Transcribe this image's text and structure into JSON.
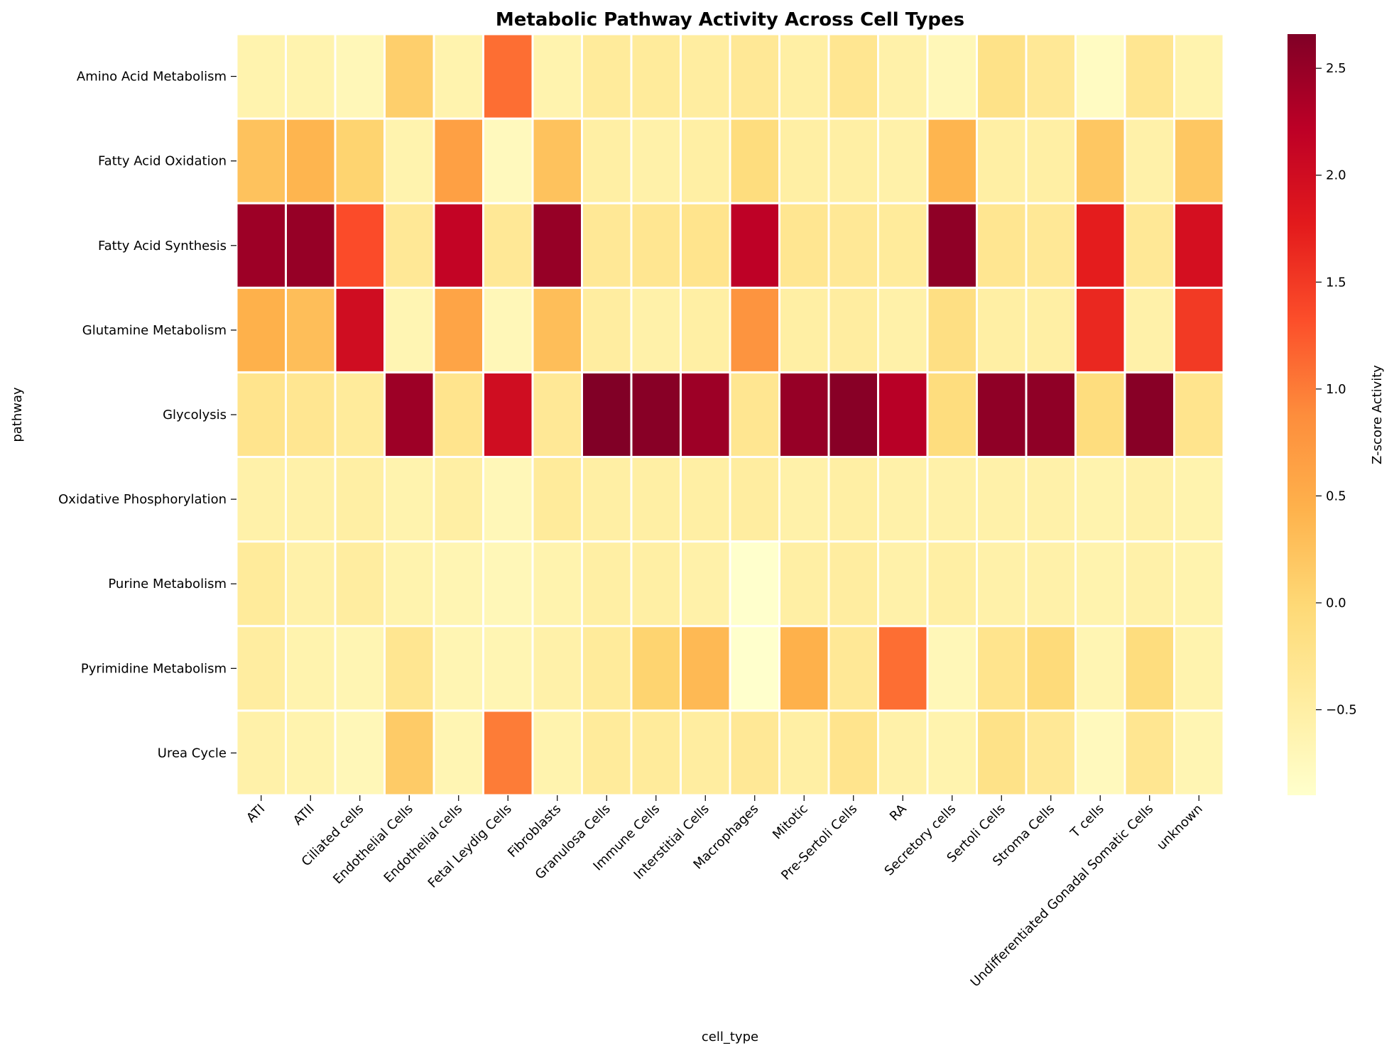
{
  "chart_data": {
    "type": "heatmap",
    "title": "Metabolic Pathway Activity Across Cell Types",
    "xlabel": "cell_type",
    "ylabel": "pathway",
    "colorbar_label": "Z-score Activity",
    "colormap": "YlOrRd",
    "colorbar_range": [
      -0.9,
      2.66
    ],
    "colorbar_ticks": [
      "−0.5",
      "0.0",
      "0.5",
      "1.0",
      "1.5",
      "2.0",
      "2.5"
    ],
    "colorbar_tick_values": [
      -0.5,
      0.0,
      0.5,
      1.0,
      1.5,
      2.0,
      2.5
    ],
    "colorbar_stops": [
      "#ffffcc",
      "#ffeda0",
      "#fed976",
      "#feb24c",
      "#fd8d3c",
      "#fc4e2a",
      "#e31a1c",
      "#bd0026",
      "#800026"
    ],
    "x_categories": [
      "ATI",
      "ATII",
      "Ciliated cells",
      "Endothelial Cells",
      "Endothelial cells",
      "Fetal Leydig Cells",
      "Fibroblasts",
      "Granulosa Cells",
      "Immune Cells",
      "Interstitial Cells",
      "Macrophages",
      "Mitotic",
      "Pre-Sertoli Cells",
      "RA",
      "Secretory cells",
      "Sertoli Cells",
      "Stroma Cells",
      "T cells",
      "Undifferentiated Gonadal Somatic Cells",
      "unknown"
    ],
    "y_categories": [
      "Amino Acid Metabolism",
      "Fatty Acid Oxidation",
      "Fatty Acid Synthesis",
      "Glutamine Metabolism",
      "Glycolysis",
      "Oxidative Phosphorylation",
      "Purine Metabolism",
      "Pyrimidine Metabolism",
      "Urea Cycle"
    ],
    "values": [
      [
        -0.6,
        -0.6,
        -0.7,
        0.1,
        -0.6,
        1.1,
        -0.6,
        -0.4,
        -0.4,
        -0.45,
        -0.35,
        -0.5,
        -0.3,
        -0.55,
        -0.7,
        -0.2,
        -0.35,
        -0.8,
        -0.3,
        -0.6
      ],
      [
        0.25,
        0.4,
        0.05,
        -0.6,
        0.65,
        -0.75,
        0.25,
        -0.5,
        -0.55,
        -0.5,
        -0.1,
        -0.5,
        -0.5,
        -0.55,
        0.4,
        -0.5,
        -0.5,
        0.2,
        -0.55,
        0.2
      ],
      [
        2.45,
        2.5,
        1.35,
        -0.35,
        2.15,
        -0.35,
        2.5,
        -0.35,
        -0.3,
        -0.25,
        2.2,
        -0.3,
        -0.35,
        -0.4,
        2.55,
        -0.3,
        -0.35,
        1.75,
        -0.35,
        1.95
      ],
      [
        0.45,
        0.3,
        2.0,
        -0.65,
        0.6,
        -0.7,
        0.3,
        -0.45,
        -0.55,
        -0.5,
        0.8,
        -0.5,
        -0.45,
        -0.55,
        -0.15,
        -0.5,
        -0.5,
        1.65,
        -0.55,
        1.5
      ],
      [
        -0.25,
        -0.3,
        -0.4,
        2.45,
        -0.25,
        2.0,
        -0.35,
        2.65,
        2.6,
        2.45,
        -0.3,
        2.5,
        2.6,
        2.25,
        -0.1,
        2.55,
        2.55,
        -0.1,
        2.6,
        -0.25
      ],
      [
        -0.55,
        -0.55,
        -0.5,
        -0.6,
        -0.5,
        -0.7,
        -0.4,
        -0.5,
        -0.5,
        -0.5,
        -0.45,
        -0.55,
        -0.5,
        -0.55,
        -0.55,
        -0.55,
        -0.55,
        -0.6,
        -0.55,
        -0.6
      ],
      [
        -0.4,
        -0.55,
        -0.45,
        -0.6,
        -0.65,
        -0.7,
        -0.6,
        -0.5,
        -0.5,
        -0.55,
        -0.9,
        -0.5,
        -0.45,
        -0.55,
        -0.5,
        -0.55,
        -0.55,
        -0.6,
        -0.55,
        -0.6
      ],
      [
        -0.45,
        -0.6,
        -0.65,
        -0.3,
        -0.65,
        -0.65,
        -0.55,
        -0.4,
        0.05,
        0.35,
        -0.9,
        0.45,
        -0.35,
        1.1,
        -0.7,
        -0.25,
        -0.05,
        -0.65,
        -0.1,
        -0.6
      ],
      [
        -0.55,
        -0.6,
        -0.7,
        0.15,
        -0.65,
        1.0,
        -0.6,
        -0.4,
        -0.4,
        -0.45,
        -0.35,
        -0.5,
        -0.25,
        -0.55,
        -0.6,
        -0.2,
        -0.35,
        -0.75,
        -0.3,
        -0.65
      ]
    ]
  }
}
